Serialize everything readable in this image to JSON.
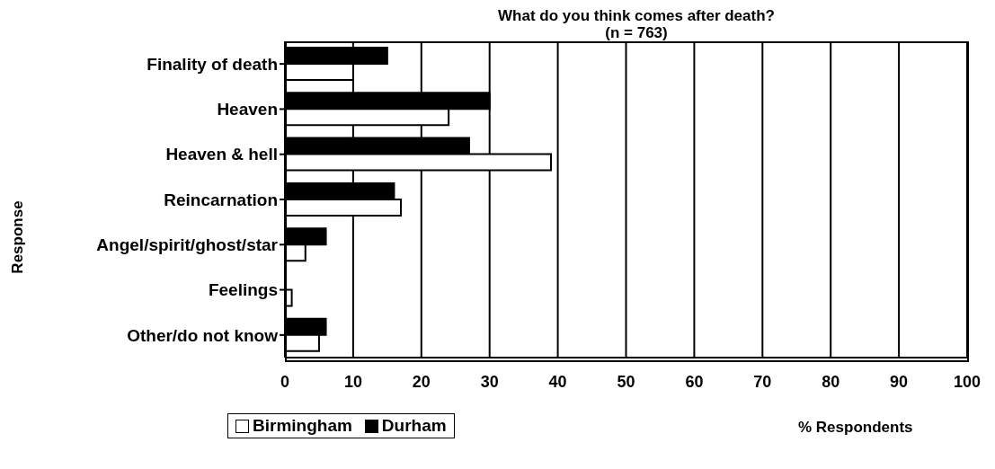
{
  "chart_data": {
    "type": "bar",
    "orientation": "horizontal",
    "title": "What do you think comes after death?",
    "subtitle": "(n = 763)",
    "xlabel": "% Respondents",
    "ylabel": "Response",
    "categories": [
      "Finality of death",
      "Heaven",
      "Heaven & hell",
      "Reincarnation",
      "Angel/spirit/ghost/star",
      "Feelings",
      "Other/do not know"
    ],
    "series": [
      {
        "name": "Birmingham",
        "color": "#ffffff",
        "values": [
          10,
          24,
          39,
          17,
          3,
          1,
          5
        ]
      },
      {
        "name": "Durham",
        "color": "#000000",
        "values": [
          15,
          30,
          27,
          16,
          6,
          0,
          6
        ]
      }
    ],
    "xlim": [
      0,
      100
    ],
    "xticks": [
      0,
      10,
      20,
      30,
      40,
      50,
      60,
      70,
      80,
      90,
      100
    ],
    "grid": "x",
    "legend": "bottom left"
  }
}
